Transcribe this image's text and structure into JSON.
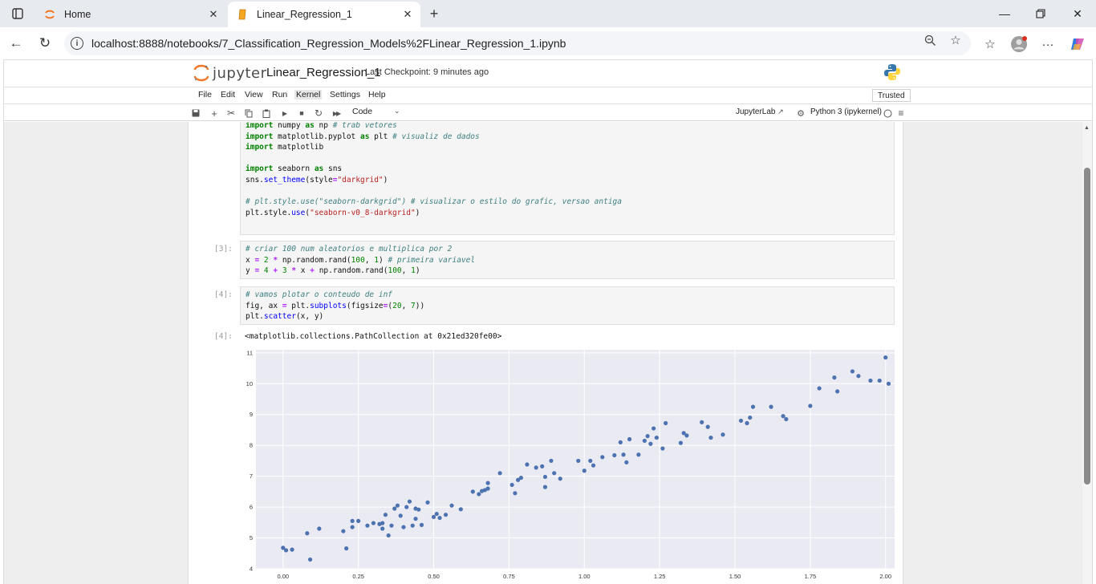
{
  "browser": {
    "tabs": [
      {
        "title": "Home",
        "active": false
      },
      {
        "title": "Linear_Regression_1",
        "active": true
      }
    ],
    "url": "localhost:8888/notebooks/7_Classification_Regression_Models%2FLinear_Regression_1.ipynb"
  },
  "jupyter": {
    "logo_text": "jupyter",
    "notebook_title": "Linear_Regression_1",
    "checkpoint": "Last Checkpoint: 9 minutes ago",
    "menu": [
      "File",
      "Edit",
      "View",
      "Run",
      "Kernel",
      "Settings",
      "Help"
    ],
    "trusted": "Trusted",
    "cell_type": "Code",
    "jupyterlab_link": "JupyterLab",
    "kernel": "Python 3 (ipykernel)"
  },
  "cells": {
    "cell1": {
      "prompt": "",
      "lines": [
        "import numpy as np # trab vetores",
        "import matplotlib.pyplot as plt # visualiz de dados",
        "import matplotlib",
        "",
        "import seaborn as sns",
        "sns.set_theme(style=\"darkgrid\")",
        "",
        "# plt.style.use(\"seaborn-darkgrid\") # visualizar o estilo do grafic, versao antiga",
        "plt.style.use(\"seaborn-v0_8-darkgrid\")"
      ]
    },
    "cell2": {
      "prompt": "[3]:",
      "lines": [
        "# criar 100 num aleatorios e multiplica por 2",
        "x = 2 * np.random.rand(100, 1) # primeira variavel",
        "y = 4 + 3 * x + np.random.rand(100, 1)"
      ]
    },
    "cell3": {
      "prompt": "[4]:",
      "lines": [
        "# vamos plotar o conteudo de inf",
        "fig, ax = plt.subplots(figsize=(20, 7))",
        "plt.scatter(x, y)"
      ]
    },
    "output": {
      "prompt": "[4]:",
      "text": "<matplotlib.collections.PathCollection at 0x21ed320fe00>"
    }
  },
  "chart_data": {
    "type": "scatter",
    "xlim": [
      -0.09,
      2.03
    ],
    "ylim": [
      4,
      11.1
    ],
    "x_ticks": [
      "0.00",
      "0.25",
      "0.50",
      "0.75",
      "1.00",
      "1.25",
      "1.50",
      "1.75",
      "2.00"
    ],
    "y_ticks": [
      "4",
      "5",
      "6",
      "7",
      "8",
      "9",
      "10",
      "11"
    ],
    "grid": true,
    "background": "#eaeaf2",
    "point_color": "#4c72b0",
    "points": [
      [
        0.0,
        4.68
      ],
      [
        0.01,
        4.6
      ],
      [
        0.03,
        4.62
      ],
      [
        0.08,
        5.15
      ],
      [
        0.09,
        4.3
      ],
      [
        0.12,
        5.3
      ],
      [
        0.2,
        5.22
      ],
      [
        0.21,
        4.66
      ],
      [
        0.23,
        5.35
      ],
      [
        0.23,
        5.55
      ],
      [
        0.25,
        5.55
      ],
      [
        0.28,
        5.4
      ],
      [
        0.3,
        5.48
      ],
      [
        0.32,
        5.45
      ],
      [
        0.33,
        5.3
      ],
      [
        0.33,
        5.48
      ],
      [
        0.34,
        5.75
      ],
      [
        0.35,
        5.08
      ],
      [
        0.36,
        5.4
      ],
      [
        0.37,
        5.95
      ],
      [
        0.38,
        6.05
      ],
      [
        0.39,
        5.72
      ],
      [
        0.4,
        5.35
      ],
      [
        0.41,
        6.0
      ],
      [
        0.42,
        6.18
      ],
      [
        0.43,
        5.4
      ],
      [
        0.44,
        5.95
      ],
      [
        0.44,
        5.62
      ],
      [
        0.45,
        5.92
      ],
      [
        0.46,
        5.42
      ],
      [
        0.48,
        6.15
      ],
      [
        0.5,
        5.68
      ],
      [
        0.51,
        5.78
      ],
      [
        0.52,
        5.65
      ],
      [
        0.54,
        5.75
      ],
      [
        0.56,
        6.05
      ],
      [
        0.59,
        5.93
      ],
      [
        0.63,
        6.5
      ],
      [
        0.65,
        6.42
      ],
      [
        0.66,
        6.52
      ],
      [
        0.67,
        6.55
      ],
      [
        0.68,
        6.78
      ],
      [
        0.68,
        6.6
      ],
      [
        0.72,
        7.1
      ],
      [
        0.76,
        6.72
      ],
      [
        0.77,
        6.45
      ],
      [
        0.78,
        6.88
      ],
      [
        0.79,
        6.95
      ],
      [
        0.81,
        7.38
      ],
      [
        0.84,
        7.28
      ],
      [
        0.86,
        7.32
      ],
      [
        0.87,
        6.98
      ],
      [
        0.87,
        6.65
      ],
      [
        0.89,
        7.5
      ],
      [
        0.9,
        7.1
      ],
      [
        0.92,
        6.92
      ],
      [
        0.98,
        7.5
      ],
      [
        1.0,
        7.18
      ],
      [
        1.02,
        7.5
      ],
      [
        1.03,
        7.35
      ],
      [
        1.06,
        7.62
      ],
      [
        1.1,
        7.68
      ],
      [
        1.12,
        8.1
      ],
      [
        1.13,
        7.7
      ],
      [
        1.14,
        7.45
      ],
      [
        1.15,
        8.2
      ],
      [
        1.18,
        7.7
      ],
      [
        1.2,
        8.15
      ],
      [
        1.21,
        8.3
      ],
      [
        1.22,
        8.05
      ],
      [
        1.23,
        8.55
      ],
      [
        1.24,
        8.25
      ],
      [
        1.26,
        7.9
      ],
      [
        1.27,
        8.72
      ],
      [
        1.32,
        8.08
      ],
      [
        1.33,
        8.4
      ],
      [
        1.34,
        8.32
      ],
      [
        1.39,
        8.75
      ],
      [
        1.41,
        8.6
      ],
      [
        1.42,
        8.25
      ],
      [
        1.46,
        8.35
      ],
      [
        1.52,
        8.8
      ],
      [
        1.54,
        8.72
      ],
      [
        1.55,
        8.9
      ],
      [
        1.56,
        9.25
      ],
      [
        1.62,
        9.25
      ],
      [
        1.66,
        8.95
      ],
      [
        1.67,
        8.85
      ],
      [
        1.75,
        9.28
      ],
      [
        1.78,
        9.85
      ],
      [
        1.83,
        10.2
      ],
      [
        1.84,
        9.75
      ],
      [
        1.89,
        10.4
      ],
      [
        1.91,
        10.25
      ],
      [
        1.95,
        10.1
      ],
      [
        1.98,
        10.1
      ],
      [
        2.0,
        10.85
      ],
      [
        2.01,
        10.0
      ]
    ]
  }
}
